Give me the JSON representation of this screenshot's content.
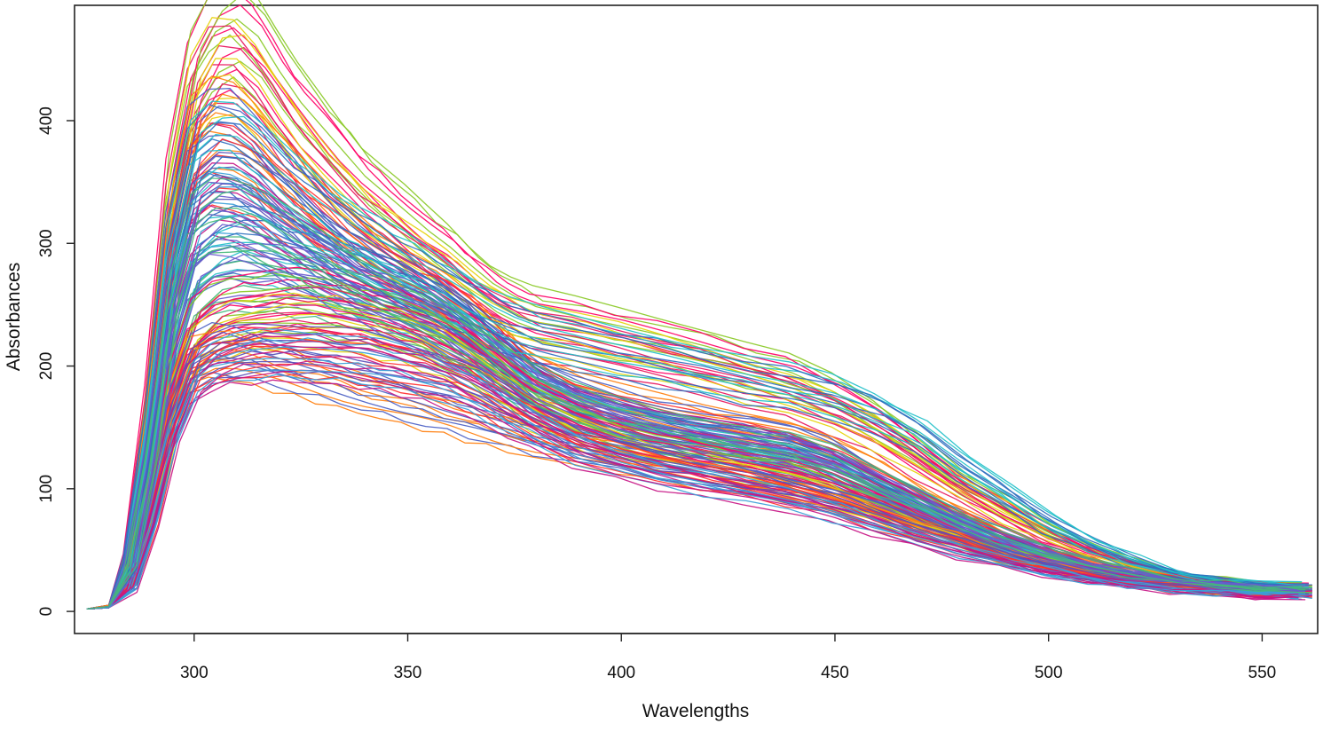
{
  "chart_data": {
    "type": "line",
    "title": "",
    "xlabel": "Wavelengths",
    "ylabel": "Absorbances",
    "xlim": [
      272,
      563
    ],
    "ylim": [
      -18,
      494
    ],
    "x_ticks": [
      300,
      350,
      400,
      450,
      500,
      550
    ],
    "y_ticks": [
      0,
      100,
      200,
      300,
      400
    ],
    "x_tick_labels": [
      "300",
      "350",
      "400",
      "450",
      "500",
      "550"
    ],
    "y_tick_labels": [
      "0",
      "100",
      "200",
      "300",
      "400"
    ],
    "grid": false,
    "legend": "none",
    "palette": [
      "#ff0066",
      "#e8175d",
      "#4b5fc4",
      "#5b4fb8",
      "#3aa0d8",
      "#22c0c9",
      "#44b87a",
      "#8ac926",
      "#e6d20a",
      "#ff7f0e",
      "#ff3030",
      "#c71585",
      "#2f6fbf",
      "#6a5acd"
    ],
    "wavelengths": [
      275,
      280,
      285,
      290,
      295,
      300,
      305,
      310,
      315,
      320,
      325,
      330,
      335,
      340,
      345,
      350,
      355,
      360,
      365,
      370,
      375,
      380,
      390,
      400,
      410,
      420,
      430,
      440,
      450,
      460,
      470,
      480,
      490,
      500,
      510,
      520,
      530,
      540,
      550,
      560
    ],
    "series": [
      {
        "values": [
          2,
          5,
          45,
          170,
          340,
          430,
          462,
          472,
          458,
          430,
          405,
          385,
          365,
          345,
          330,
          315,
          300,
          287,
          272,
          258,
          248,
          240,
          232,
          225,
          218,
          210,
          200,
          190,
          175,
          155,
          130,
          105,
          85,
          65,
          50,
          38,
          30,
          25,
          22,
          20
        ]
      },
      {
        "values": [
          2,
          5,
          42,
          160,
          320,
          410,
          440,
          440,
          422,
          395,
          370,
          350,
          332,
          316,
          303,
          290,
          278,
          266,
          254,
          243,
          234,
          228,
          220,
          213,
          205,
          196,
          186,
          176,
          162,
          144,
          122,
          100,
          80,
          62,
          48,
          37,
          29,
          24,
          21,
          19
        ]
      },
      {
        "values": [
          2,
          5,
          40,
          150,
          300,
          380,
          395,
          392,
          378,
          358,
          340,
          322,
          305,
          292,
          280,
          270,
          260,
          248,
          235,
          220,
          205,
          192,
          178,
          168,
          160,
          153,
          148,
          142,
          130,
          112,
          93,
          76,
          61,
          48,
          38,
          30,
          25,
          21,
          19,
          18
        ]
      },
      {
        "values": [
          2,
          4,
          36,
          135,
          270,
          345,
          360,
          358,
          348,
          333,
          320,
          306,
          292,
          280,
          270,
          262,
          254,
          245,
          232,
          216,
          200,
          186,
          170,
          160,
          152,
          146,
          140,
          134,
          122,
          105,
          88,
          72,
          58,
          46,
          37,
          30,
          25,
          21,
          19,
          17
        ]
      },
      {
        "values": [
          2,
          4,
          34,
          125,
          250,
          318,
          332,
          330,
          320,
          308,
          297,
          287,
          277,
          268,
          260,
          252,
          244,
          234,
          222,
          208,
          194,
          181,
          166,
          156,
          148,
          142,
          136,
          130,
          119,
          102,
          86,
          70,
          57,
          45,
          36,
          29,
          24,
          21,
          18,
          17
        ]
      },
      {
        "values": [
          2,
          4,
          30,
          110,
          220,
          280,
          295,
          300,
          298,
          293,
          288,
          282,
          275,
          268,
          262,
          255,
          248,
          238,
          225,
          210,
          196,
          182,
          166,
          155,
          146,
          139,
          132,
          125,
          114,
          98,
          82,
          67,
          54,
          43,
          34,
          28,
          23,
          20,
          18,
          16
        ]
      },
      {
        "values": [
          2,
          4,
          28,
          100,
          200,
          255,
          268,
          272,
          272,
          270,
          268,
          265,
          260,
          255,
          250,
          245,
          238,
          229,
          218,
          205,
          191,
          178,
          160,
          148,
          139,
          132,
          125,
          118,
          107,
          92,
          77,
          63,
          51,
          41,
          33,
          27,
          22,
          19,
          17,
          16
        ]
      },
      {
        "values": [
          2,
          3,
          25,
          90,
          180,
          230,
          245,
          250,
          252,
          253,
          253,
          251,
          248,
          244,
          240,
          235,
          229,
          220,
          210,
          197,
          184,
          172,
          154,
          142,
          133,
          126,
          119,
          112,
          101,
          87,
          73,
          60,
          48,
          39,
          31,
          25,
          21,
          18,
          16,
          15
        ]
      },
      {
        "values": [
          2,
          3,
          22,
          80,
          160,
          210,
          225,
          232,
          236,
          238,
          239,
          238,
          236,
          233,
          229,
          225,
          219,
          211,
          201,
          189,
          177,
          165,
          147,
          135,
          126,
          119,
          112,
          105,
          95,
          82,
          69,
          57,
          46,
          37,
          30,
          24,
          20,
          17,
          15,
          14
        ]
      },
      {
        "values": [
          2,
          3,
          22,
          82,
          165,
          205,
          212,
          210,
          205,
          200,
          195,
          190,
          185,
          180,
          175,
          170,
          165,
          160,
          155,
          150,
          145,
          140,
          133,
          126,
          119,
          112,
          106,
          100,
          92,
          81,
          69,
          58,
          47,
          38,
          31,
          25,
          21,
          18,
          16,
          15
        ]
      },
      {
        "values": [
          2,
          3,
          20,
          75,
          150,
          195,
          205,
          210,
          212,
          213,
          213,
          212,
          210,
          207,
          203,
          199,
          195,
          190,
          183,
          174,
          164,
          154,
          138,
          127,
          118,
          111,
          104,
          97,
          88,
          76,
          64,
          53,
          43,
          35,
          28,
          23,
          19,
          16,
          14,
          13
        ]
      },
      {
        "values": [
          2,
          3,
          18,
          70,
          140,
          185,
          200,
          205,
          207,
          208,
          208,
          207,
          205,
          203,
          200,
          196,
          191,
          185,
          177,
          168,
          158,
          148,
          132,
          120,
          111,
          104,
          97,
          90,
          81,
          70,
          59,
          49,
          40,
          32,
          26,
          21,
          17,
          15,
          13,
          12
        ]
      },
      {
        "values": [
          2,
          4,
          38,
          145,
          290,
          365,
          380,
          378,
          365,
          350,
          336,
          323,
          311,
          300,
          290,
          280,
          270,
          260,
          250,
          240,
          232,
          226,
          218,
          211,
          204,
          196,
          189,
          183,
          175,
          162,
          144,
          120,
          96,
          73,
          55,
          41,
          31,
          25,
          22,
          20
        ]
      },
      {
        "values": [
          2,
          4,
          33,
          122,
          245,
          308,
          322,
          322,
          315,
          305,
          294,
          283,
          272,
          262,
          253,
          244,
          236,
          227,
          217,
          206,
          194,
          183,
          168,
          158,
          150,
          144,
          138,
          132,
          122,
          106,
          90,
          74,
          60,
          48,
          38,
          31,
          25,
          22,
          19,
          18
        ]
      }
    ]
  }
}
